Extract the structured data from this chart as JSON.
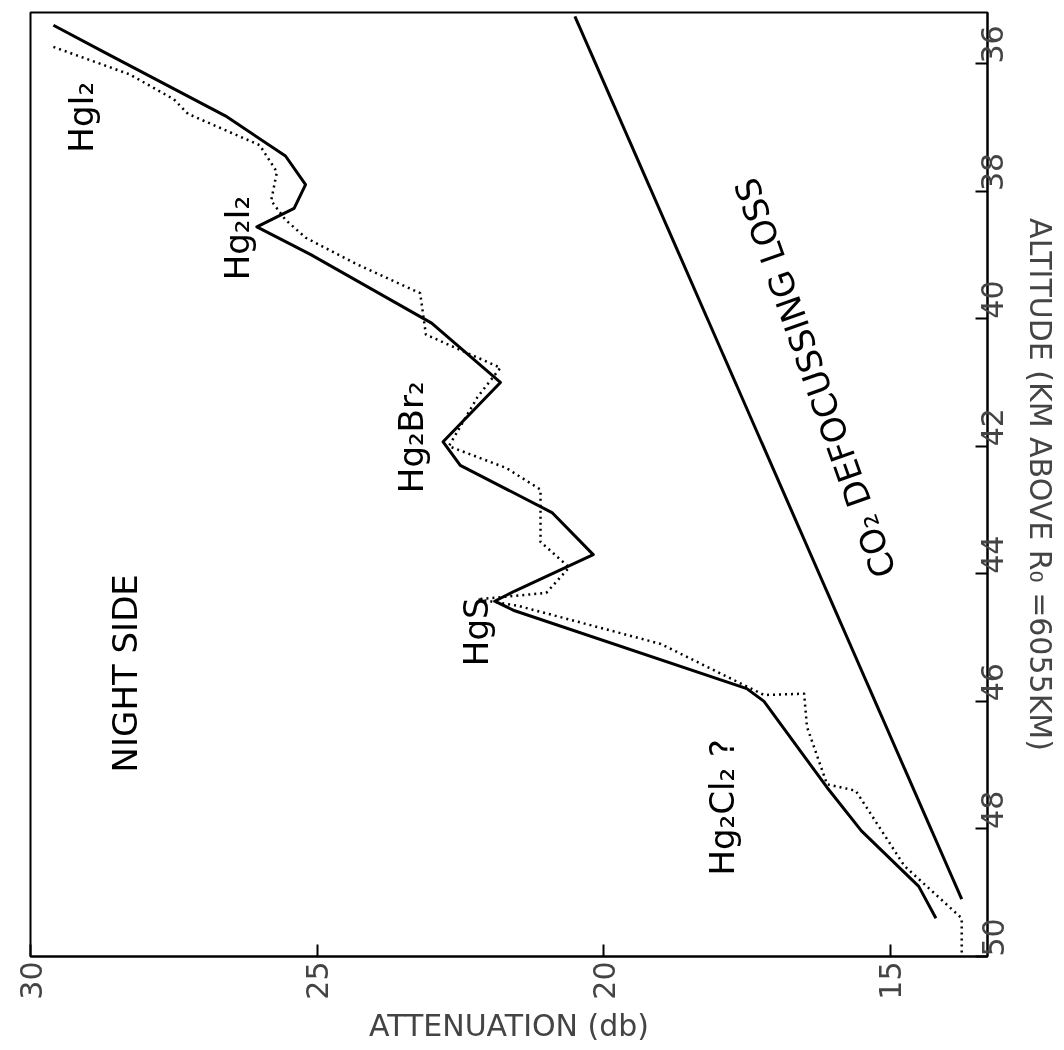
{
  "chart_data": {
    "type": "line",
    "xlabel": "ATTENUATION (db)",
    "ylabel": "ALTITUDE (KM ABOVE R₀ =6055KM)",
    "xlim": [
      30,
      13.3
    ],
    "xticks": [
      30,
      25,
      20,
      15
    ],
    "ylim": [
      50,
      35.2
    ],
    "yticks": [
      36,
      38,
      40,
      42,
      44,
      46,
      48,
      50
    ],
    "grid": false,
    "marker": "none",
    "series": [
      {
        "color": "#000000",
        "line_style": "solid",
        "x": [
          29.6,
          28.7,
          26.6,
          25.55,
          25.2,
          25.4,
          26.05,
          25.1,
          23.0,
          21.8,
          22.8,
          22.5,
          20.9,
          20.18,
          21.55,
          21.9,
          21.55,
          17.5,
          17.2,
          16.1,
          15.5,
          14.5,
          14.2
        ],
        "values": [
          35.4,
          35.83,
          36.82,
          37.45,
          37.9,
          38.27,
          38.56,
          39.0,
          40.07,
          41.0,
          41.93,
          42.3,
          43.04,
          43.7,
          44.27,
          44.43,
          44.58,
          45.8,
          46.0,
          47.35,
          48.03,
          48.9,
          49.4
        ]
      },
      {
        "color": "#000000",
        "line_style": "dotted",
        "x": [
          29.6,
          28.27,
          27.5,
          27.25,
          26.0,
          25.7,
          25.8,
          25.55,
          25.2,
          24.3,
          23.2,
          23.1,
          21.8,
          22.2,
          22.7,
          21.7,
          21.1,
          21.1,
          20.6,
          21.0,
          22.2,
          21.5,
          19.0,
          17.2,
          16.5,
          16.45,
          16.1,
          15.6,
          14.75,
          13.75,
          13.75
        ],
        "values": [
          35.74,
          36.17,
          36.56,
          36.79,
          37.28,
          37.7,
          38.15,
          38.45,
          38.73,
          39.15,
          39.6,
          40.25,
          40.77,
          41.23,
          42.0,
          42.34,
          42.68,
          43.5,
          43.9,
          44.3,
          44.4,
          44.5,
          45.1,
          45.9,
          45.88,
          46.4,
          47.3,
          47.4,
          48.58,
          49.4,
          50.0
        ]
      },
      {
        "color": "#000000",
        "line_style": "solid",
        "x": [
          20.5,
          13.75
        ],
        "values": [
          35.26,
          49.1
        ]
      }
    ],
    "annotations": [
      "NIGHT SIDE",
      "HgI₂",
      "Hg₂I₂",
      "Hg₂Br₂",
      "HgS",
      "Hg₂Cl₂ ?",
      "CO₂ DEFOCUSSING LOSS"
    ]
  }
}
